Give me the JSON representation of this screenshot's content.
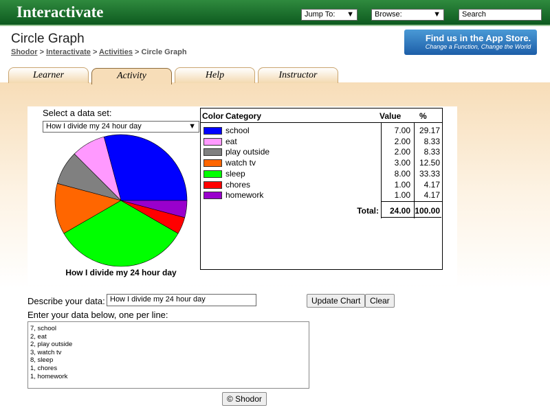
{
  "header": {
    "logo": "Interactivate",
    "jump_to": "Jump To:",
    "browse": "Browse:",
    "search": "Search"
  },
  "page": {
    "title": "Circle Graph",
    "breadcrumb": [
      "Shodor",
      "Interactivate",
      "Activities",
      "Circle Graph"
    ],
    "separator": ">",
    "app_store": {
      "line1": "Find us in the App Store.",
      "line2": "Change a Function, Change the World"
    }
  },
  "tabs": [
    "Learner",
    "Activity",
    "Help",
    "Instructor"
  ],
  "dataset": {
    "label": "Select a data set:",
    "selected": "How I divide my 24 hour day"
  },
  "chart_data": {
    "type": "pie",
    "title": "How I divide my 24 hour day",
    "categories": [
      "school",
      "eat",
      "play outside",
      "watch tv",
      "sleep",
      "chores",
      "homework"
    ],
    "values": [
      7,
      2,
      2,
      3,
      8,
      1,
      1
    ],
    "colors": [
      "#0000ff",
      "#ff99ff",
      "#808080",
      "#ff6600",
      "#00ff00",
      "#ff0000",
      "#9900cc"
    ]
  },
  "table": {
    "columns": [
      "Color",
      "Category",
      "Value",
      "%"
    ],
    "rows": [
      [
        "7.00",
        "29.17"
      ],
      [
        "2.00",
        "8.33"
      ],
      [
        "2.00",
        "8.33"
      ],
      [
        "3.00",
        "12.50"
      ],
      [
        "8.00",
        "33.33"
      ],
      [
        "1.00",
        "4.17"
      ],
      [
        "1.00",
        "4.17"
      ]
    ],
    "total": {
      "label": "Total:",
      "value": "24.00",
      "percent": "100.00"
    }
  },
  "form": {
    "describe_label": "Describe your data:",
    "describe_value": "How I divide my 24 hour day",
    "update": "Update Chart",
    "clear": "Clear",
    "enter_label": "Enter your data below, one per line:",
    "lines": [
      "7, school",
      "2, eat",
      "2, play outside",
      "3, watch tv",
      "8, sleep",
      "1, chores",
      "1, homework"
    ],
    "footer_button": "© Shodor"
  }
}
